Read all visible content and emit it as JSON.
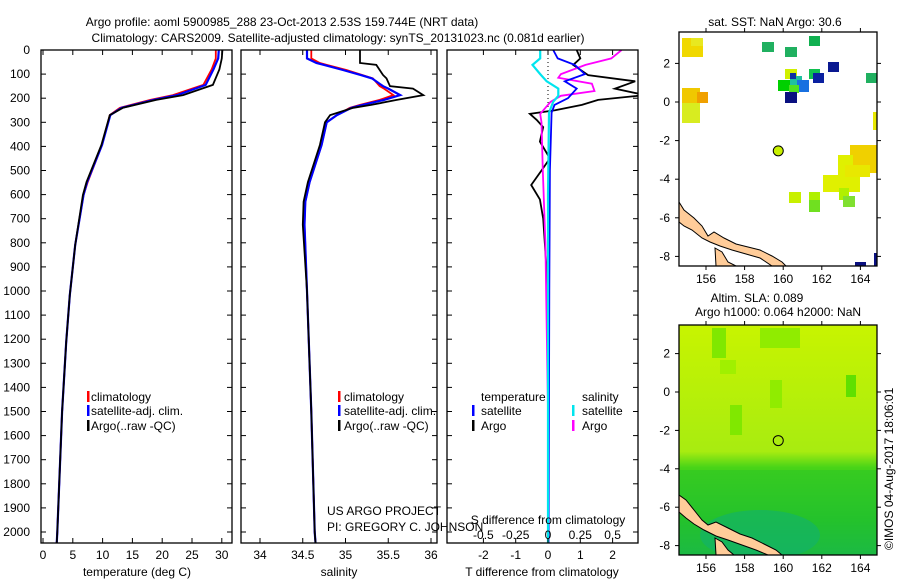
{
  "title_line1": "Argo profile: aoml 5900985_288 23-Oct-2013 2.53S 159.744E (NRT data)",
  "title_line2": "Climatology: CARS2009. Satellite-adjusted climatology: synTS_20131023.nc (0.081d earlier)",
  "credit": "US ARGO PROJECT",
  "pi": "PI: GREGORY C. JOHNSON",
  "timestamp": "©IMOS 04-Aug-2017 18:06:01",
  "colors": {
    "climatology": "#ff0000",
    "satellite": "#0000ff",
    "argo": "#000000",
    "sal_satellite": "#00e5ee",
    "sal_argo": "#ff00ff",
    "land": "#ffcc99"
  },
  "chart_data": [
    {
      "type": "line",
      "xlabel": "temperature (deg C)",
      "ylabel": "depth",
      "xlim": [
        -0.3,
        31.6
      ],
      "ylim": [
        2050,
        0
      ],
      "xticks": [
        "0",
        "5",
        "10",
        "15",
        "20",
        "25",
        "30"
      ],
      "xtick_values": [
        0,
        5,
        10,
        15,
        20,
        25,
        30
      ],
      "yticks": [
        "0",
        "100",
        "200",
        "300",
        "400",
        "500",
        "600",
        "700",
        "800",
        "900",
        "1000",
        "1100",
        "1200",
        "1300",
        "1400",
        "1500",
        "1600",
        "1700",
        "1800",
        "1900",
        "2000"
      ],
      "legend": [
        "climatology",
        "satellite-adj. clim.",
        "Argo(..raw -QC)"
      ],
      "depth": [
        0,
        35,
        80,
        145,
        187,
        207,
        240,
        270,
        394,
        548,
        602,
        809,
        1017,
        1212,
        1500,
        2000,
        2050
      ],
      "series": [
        {
          "name": "climatology",
          "values": [
            29.0,
            29.0,
            28.3,
            26.9,
            21.8,
            18.0,
            12.9,
            11.2,
            9.9,
            7.5,
            6.8,
            5.4,
            4.5,
            3.9,
            3.2,
            2.4,
            2.3
          ]
        },
        {
          "name": "satellite-adj. clim.",
          "values": [
            29.5,
            29.4,
            28.6,
            27.3,
            22.5,
            18.5,
            13.2,
            11.3,
            9.9,
            7.4,
            6.8,
            5.4,
            4.5,
            3.9,
            3.2,
            2.4,
            2.3
          ]
        },
        {
          "name": "Argo(..raw -QC)",
          "values": [
            30.1,
            30.0,
            29.6,
            28.5,
            23.5,
            19.0,
            13.4,
            11.2,
            9.8,
            7.3,
            6.7,
            5.4,
            4.5,
            3.9,
            3.2,
            2.4,
            2.3
          ]
        }
      ]
    },
    {
      "type": "line",
      "xlabel": "salinity",
      "xlim": [
        33.78,
        36.08
      ],
      "ylim": [
        2050,
        0
      ],
      "xticks": [
        "34",
        "34.5",
        "35",
        "35.5",
        "36"
      ],
      "xtick_values": [
        34,
        34.5,
        35,
        35.5,
        36
      ],
      "legend": [
        "climatology",
        "satellite-adj. clim.",
        "Argo(..raw -QC)"
      ],
      "depth": [
        0,
        35,
        54,
        62,
        83,
        104,
        118,
        150,
        160,
        187,
        207,
        228,
        240,
        270,
        300,
        394,
        548,
        630,
        725,
        1000,
        1500,
        2000,
        2050
      ],
      "series": [
        {
          "name": "climatology",
          "values": [
            34.6,
            34.6,
            34.7,
            34.78,
            35.01,
            35.2,
            35.32,
            35.4,
            35.45,
            35.56,
            35.4,
            35.17,
            35.05,
            34.9,
            34.78,
            34.72,
            34.58,
            34.53,
            34.52,
            34.55,
            34.6,
            34.64,
            34.65
          ]
        },
        {
          "name": "satellite-adj. clim.",
          "values": [
            34.55,
            34.55,
            34.66,
            34.75,
            34.97,
            35.18,
            35.31,
            35.44,
            35.5,
            35.64,
            35.45,
            35.2,
            35.07,
            34.9,
            34.78,
            34.72,
            34.58,
            34.53,
            34.52,
            34.55,
            34.6,
            34.64,
            34.65
          ]
        },
        {
          "name": "Argo(..raw -QC)",
          "values": [
            35.17,
            35.17,
            35.17,
            35.36,
            35.4,
            35.44,
            35.48,
            35.52,
            35.79,
            35.91,
            35.6,
            35.3,
            35.09,
            34.82,
            34.76,
            34.7,
            34.56,
            34.51,
            34.5,
            34.55,
            34.6,
            34.64,
            34.65
          ]
        }
      ]
    },
    {
      "type": "line",
      "xlabel": "T difference from climatology",
      "xlabel2": "S difference from climatology",
      "xlim": [
        -3,
        2.9
      ],
      "ylim": [
        2050,
        0
      ],
      "xticks": [
        "-2",
        "-1",
        "0",
        "1",
        "2"
      ],
      "xtick_values": [
        -2,
        -1,
        0,
        1,
        2
      ],
      "xticks2": [
        "-0.5",
        "-0.25",
        "0",
        "0.25",
        "0.5"
      ],
      "xtick2_values": [
        -0.5,
        -0.25,
        0,
        0.25,
        0.5
      ],
      "legend_headers": [
        "temperature",
        "salinity"
      ],
      "legend": [
        "satellite",
        "Argo",
        "satellite",
        "Argo"
      ],
      "series": [
        {
          "name": "T satellite",
          "axis": "T",
          "depth": [
            0,
            35,
            62,
            100,
            130,
            160,
            200,
            228,
            260,
            500,
            1000,
            2050
          ],
          "values": [
            0.16,
            0.3,
            0.83,
            1.14,
            0.52,
            0.89,
            0.62,
            0.2,
            0.11,
            0.06,
            0.04,
            0.02
          ]
        },
        {
          "name": "T Argo",
          "axis": "T",
          "depth": [
            0,
            35,
            62,
            104,
            130,
            160,
            187,
            207,
            228,
            250,
            265,
            290,
            320,
            380,
            450,
            500,
            560,
            620,
            700,
            800,
            1000,
            1500,
            2050
          ],
          "values": [
            0.89,
            1.0,
            0.78,
            1.24,
            2.7,
            2.07,
            3.0,
            1.55,
            1.05,
            0.22,
            -0.56,
            -0.35,
            -0.15,
            -0.25,
            0.06,
            -0.2,
            -0.52,
            -0.25,
            -0.15,
            -0.1,
            0.0,
            0.02,
            0.0
          ]
        },
        {
          "name": "S satellite",
          "axis": "S",
          "depth": [
            0,
            35,
            62,
            100,
            130,
            160,
            190,
            215,
            260,
            600,
            1200,
            2050
          ],
          "values": [
            -0.06,
            -0.06,
            -0.12,
            -0.06,
            -0.01,
            0.08,
            0.08,
            0.04,
            0.008,
            0.0,
            0.0,
            0.0
          ]
        },
        {
          "name": "S Argo",
          "axis": "S",
          "depth": [
            0,
            35,
            62,
            100,
            115,
            140,
            170,
            190,
            215,
            265,
            300,
            500,
            800,
            1500,
            2050
          ],
          "values": [
            0.57,
            0.49,
            0.29,
            0.1,
            0.08,
            0.34,
            0.36,
            0.1,
            0.02,
            -0.06,
            -0.05,
            -0.04,
            -0.02,
            0.0,
            0.0
          ]
        }
      ]
    }
  ],
  "map_sst": {
    "title": "sat. SST: NaN Argo: 30.6",
    "xticks": [
      "156",
      "158",
      "160",
      "162",
      "164"
    ],
    "yticks": [
      "2",
      "0",
      "-2",
      "-4",
      "-6",
      "-8"
    ],
    "argo_lon": 159.744,
    "argo_lat": -2.53
  },
  "map_sla": {
    "title1": "Altim. SLA: 0.089",
    "title2": "Argo h1000: 0.064 h2000: NaN",
    "xticks": [
      "156",
      "158",
      "160",
      "162",
      "164"
    ],
    "yticks": [
      "2",
      "0",
      "-2",
      "-4",
      "-6",
      "-8"
    ],
    "argo_lon": 159.744,
    "argo_lat": -2.53
  }
}
